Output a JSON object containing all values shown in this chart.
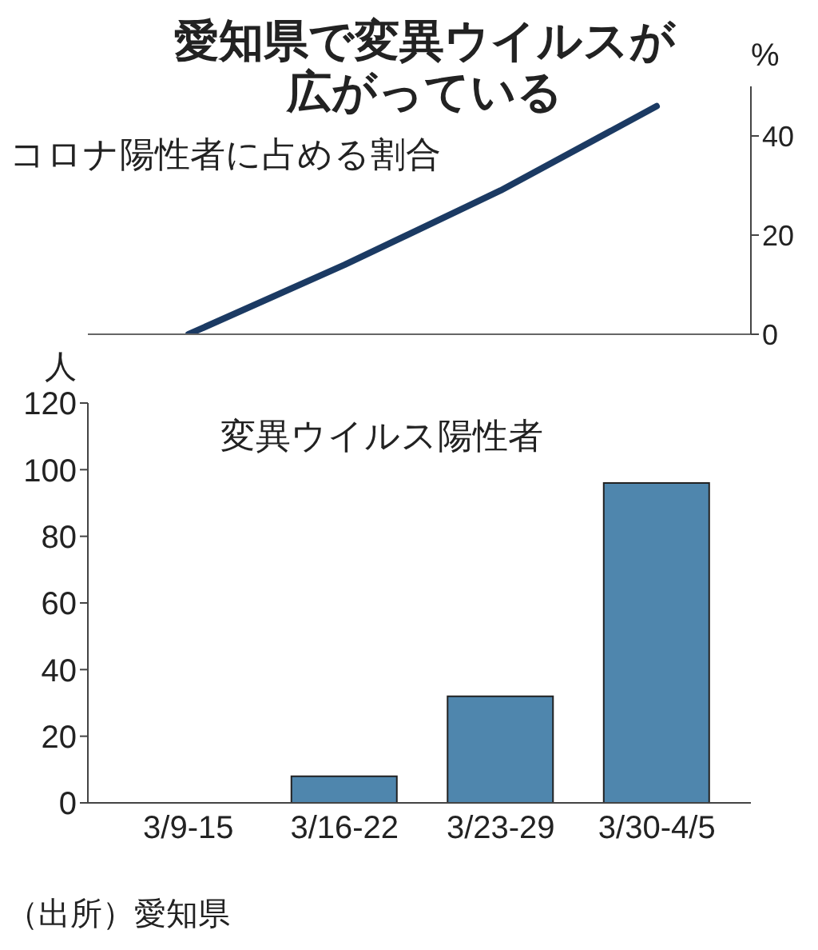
{
  "chart_data": [
    {
      "type": "line",
      "title": "愛知県で変異ウイルスが広がっている",
      "subtitle": "コロナ陽性者に占める割合",
      "ylabel": "%",
      "categories": [
        null,
        null,
        null,
        null
      ],
      "series": [
        {
          "color": "#1b3a63",
          "values": [
            0,
            14,
            29,
            46
          ]
        }
      ],
      "ylim": [
        0,
        50
      ],
      "yticks": [
        0,
        20,
        40
      ],
      "marker": "none",
      "line_style": "solid",
      "grid": false,
      "legend": false
    },
    {
      "type": "bar",
      "title": "変異ウイルス陽性者",
      "ylabel": "人",
      "categories": [
        "3/9-15",
        "3/16-22",
        "3/23-29",
        "3/30-4/5"
      ],
      "series": [
        {
          "color": "#4f86ad",
          "values": [
            0,
            8,
            32,
            96
          ]
        }
      ],
      "ylim": [
        0,
        120
      ],
      "yticks": [
        0,
        20,
        40,
        60,
        80,
        100,
        120
      ],
      "annotations": [
        "（出所）愛知県"
      ],
      "grid": false,
      "legend": false
    }
  ]
}
